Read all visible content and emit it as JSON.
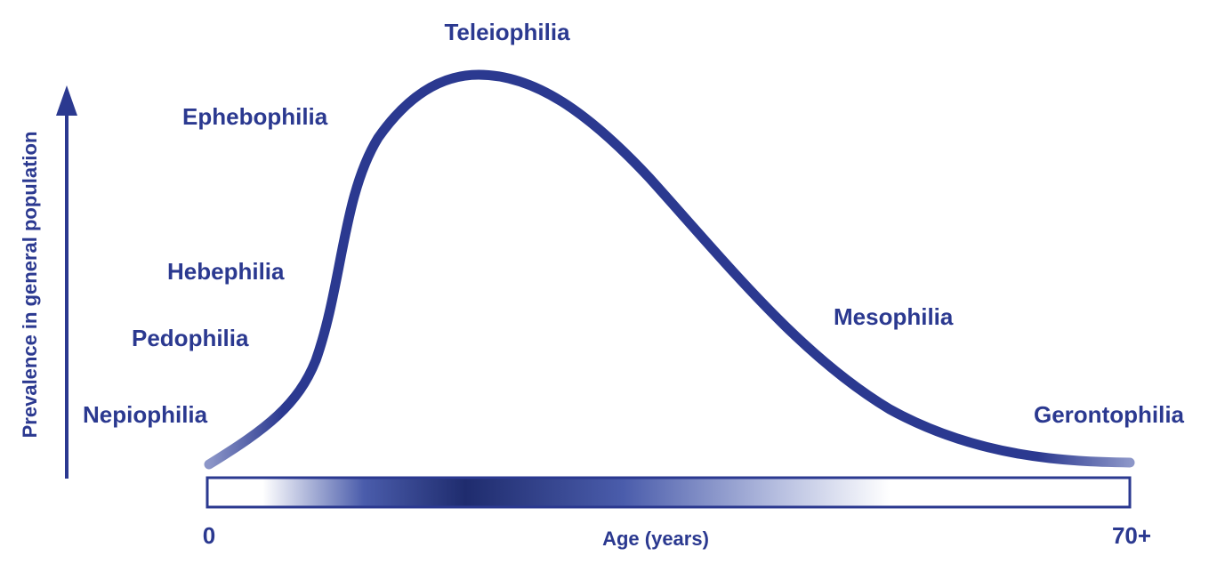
{
  "labels": {
    "teleiophilia": "Teleiophilia",
    "ephebophilia": "Ephebophilia",
    "hebephilia": "Hebephilia",
    "pedophilia": "Pedophilia",
    "nepiophilia": "Nepiophilia",
    "mesophilia": "Mesophilia",
    "gerontophilia": "Gerontophilia"
  },
  "axes": {
    "y_label": "Prevalence in general population",
    "x_label": "Age (years)",
    "x_start": "0",
    "x_end": "70+"
  }
}
